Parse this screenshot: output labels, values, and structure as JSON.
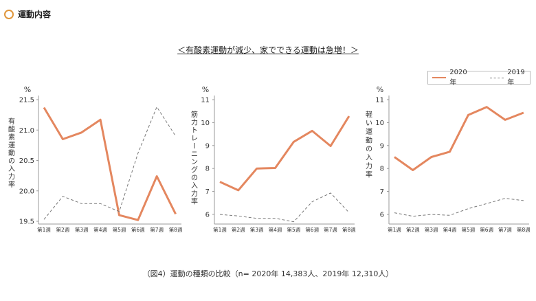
{
  "header": {
    "title": "運動内容"
  },
  "subtitle": "＜有酸素運動が減少、家でできる運動は急増！＞",
  "legend": {
    "series_2020": "2020年",
    "series_2019": "2019年"
  },
  "caption": "（図4）運動の種類の比較（n= 2020年 14,383人、2019年 12,310人）",
  "colors": {
    "s2020": "#e4875f",
    "s2019": "#777777"
  },
  "chart_data": [
    {
      "type": "line",
      "unit": "%",
      "ylabel": "有酸素運動の入力率",
      "categories": [
        "第1週",
        "第2週",
        "第3週",
        "第4週",
        "第5週",
        "第6週",
        "第7週",
        "第8週"
      ],
      "ylim": [
        19.5,
        21.5
      ],
      "yticks": [
        "21.5",
        "21.0",
        "20.5",
        "20.0",
        "19.5"
      ],
      "series": [
        {
          "name": "2020年",
          "style": "solid",
          "values": [
            21.37,
            20.85,
            20.96,
            21.17,
            19.6,
            19.52,
            20.24,
            19.62
          ]
        },
        {
          "name": "2019年",
          "style": "dashed",
          "values": [
            19.53,
            19.91,
            19.79,
            19.79,
            19.66,
            20.62,
            21.38,
            20.9
          ]
        }
      ]
    },
    {
      "type": "line",
      "unit": "%",
      "ylabel": "筋力トレーニングの入力率",
      "categories": [
        "第1週",
        "第2週",
        "第3週",
        "第4週",
        "第5週",
        "第6週",
        "第7週",
        "第8週"
      ],
      "ylim": [
        5.7,
        11
      ],
      "yticks": [
        "11",
        "10",
        "9",
        "8",
        "7",
        "6"
      ],
      "series": [
        {
          "name": "2020年",
          "style": "solid",
          "values": [
            7.42,
            7.05,
            8.0,
            8.02,
            9.16,
            9.64,
            8.98,
            10.28
          ]
        },
        {
          "name": "2019年",
          "style": "dashed",
          "values": [
            6.0,
            5.93,
            5.83,
            5.83,
            5.68,
            6.55,
            6.93,
            6.08
          ]
        }
      ]
    },
    {
      "type": "line",
      "unit": "%",
      "ylabel": "軽い運動の入力率",
      "categories": [
        "第1週",
        "第2週",
        "第3週",
        "第4週",
        "第5週",
        "第6週",
        "第7週",
        "第8週"
      ],
      "ylim": [
        5.7,
        11
      ],
      "yticks": [
        "11",
        "10",
        "9",
        "8",
        "7",
        "6"
      ],
      "series": [
        {
          "name": "2020年",
          "style": "solid",
          "values": [
            8.5,
            7.93,
            8.5,
            8.73,
            10.33,
            10.68,
            10.12,
            10.43
          ]
        },
        {
          "name": "2019年",
          "style": "dashed",
          "values": [
            6.07,
            5.92,
            6.0,
            5.96,
            6.25,
            6.47,
            6.7,
            6.6
          ]
        }
      ]
    }
  ]
}
